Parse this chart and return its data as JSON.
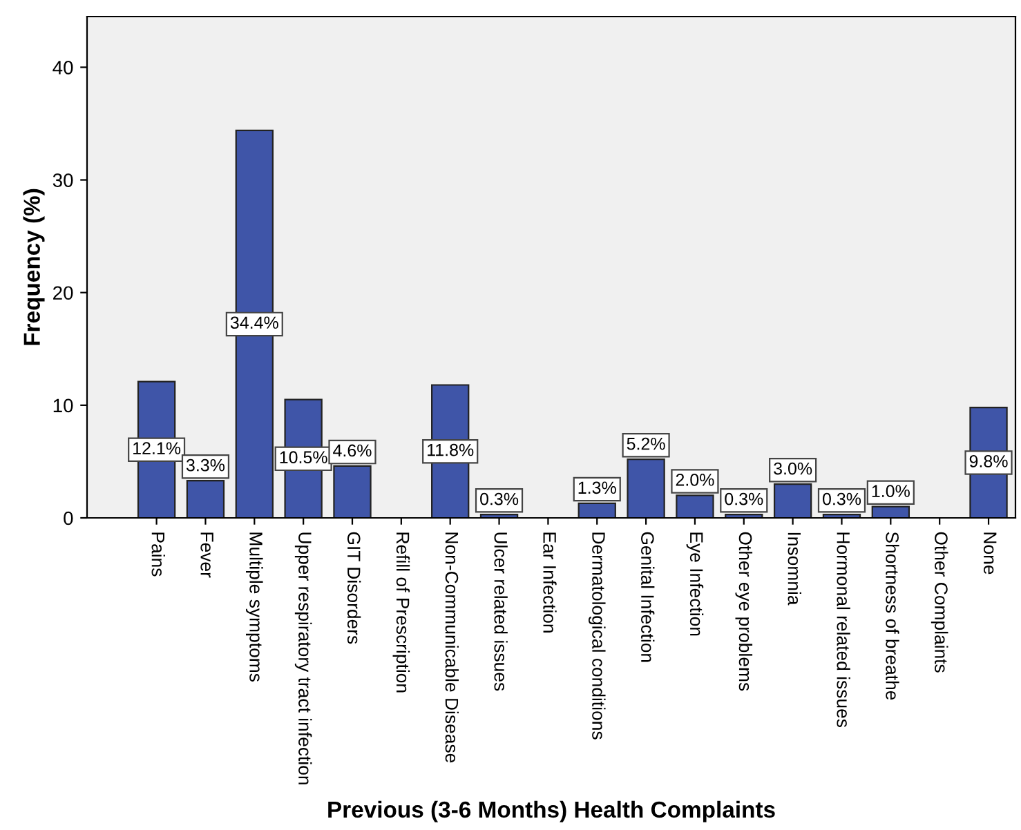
{
  "chart_data": {
    "type": "bar",
    "xlabel": "Previous (3-6 Months) Health Complaints",
    "ylabel": "Frequency (%)",
    "categories": [
      "Pains",
      "Fever",
      "Multiple symptoms",
      "Upper respiratory tract infection",
      "GIT Disorders",
      "Refill of Prescription",
      "Non-Communicable Disease",
      "Ulcer related issues",
      "Ear Infection",
      "Dermatological conditions",
      "Genital Infection",
      "Eye Infection",
      "Other eye problems",
      "Insomnia",
      "Hormonal related issues",
      "Shortness of breathe",
      "Other Complaints",
      "None"
    ],
    "values": [
      12.1,
      3.3,
      34.4,
      10.5,
      4.6,
      null,
      11.8,
      0.3,
      null,
      1.3,
      5.2,
      2.0,
      0.3,
      3.0,
      0.3,
      1.0,
      null,
      9.8
    ],
    "value_labels": [
      "12.1%",
      "3.3%",
      "34.4%",
      "10.5%",
      "4.6%",
      null,
      "11.8%",
      "0.3%",
      null,
      "1.3%",
      "5.2%",
      "2.0%",
      "0.3%",
      "3.0%",
      "0.3%",
      "1.0%",
      null,
      "9.8%"
    ],
    "color": "#3f55a8",
    "ylim": [
      0,
      44.5
    ],
    "yticks": [
      0,
      10,
      20,
      30,
      40
    ],
    "grid": false
  }
}
